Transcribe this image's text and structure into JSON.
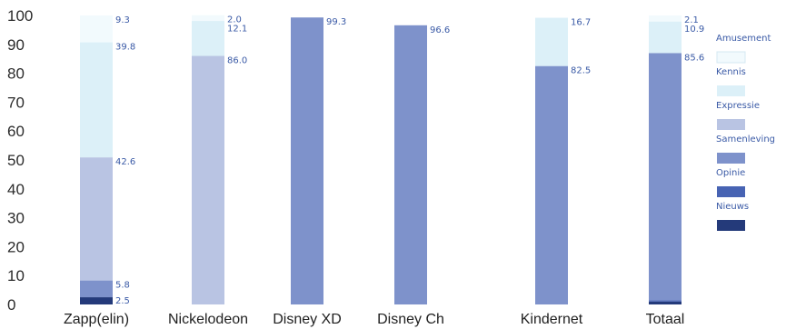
{
  "chart_data": {
    "type": "bar",
    "stacked": true,
    "title": "",
    "xlabel": "",
    "ylabel": "",
    "ylim": [
      0,
      100
    ],
    "yticks": [
      0,
      10,
      20,
      30,
      40,
      50,
      60,
      70,
      80,
      90,
      100
    ],
    "grid": false,
    "legend_position": "right",
    "categories": [
      "Zapp(elin)",
      "Nickelodeon",
      "Disney XD",
      "Disney Ch",
      "Kindernet",
      "Totaal"
    ],
    "series": [
      {
        "name": "Nieuws",
        "color": "#243a7a",
        "values": [
          2.5,
          0,
          0,
          0,
          0,
          1.0
        ]
      },
      {
        "name": "Opinie",
        "color": "#4763b3",
        "values": [
          0,
          0,
          0,
          0,
          0,
          0.4
        ]
      },
      {
        "name": "Samenleving",
        "color": "#7e92cb",
        "values": [
          5.8,
          0,
          99.3,
          96.6,
          82.5,
          85.6
        ]
      },
      {
        "name": "Expressie",
        "color": "#b9c4e3",
        "values": [
          42.6,
          86.0,
          0,
          0,
          0,
          0
        ]
      },
      {
        "name": "Kennis",
        "color": "#dcf0f8",
        "values": [
          39.8,
          12.1,
          0,
          0,
          16.7,
          10.9
        ]
      },
      {
        "name": "Amusement",
        "color": "#f2fafd",
        "values": [
          9.3,
          2.0,
          0,
          0,
          0,
          2.1
        ]
      }
    ],
    "data_labels": [
      {
        "category": 0,
        "series": "Nieuws",
        "text": "2.5"
      },
      {
        "category": 0,
        "series": "Samenleving",
        "text": "5.8"
      },
      {
        "category": 0,
        "series": "Expressie",
        "text": "42.6"
      },
      {
        "category": 0,
        "series": "Kennis",
        "text": "39.8"
      },
      {
        "category": 0,
        "series": "Amusement",
        "text": "9.3"
      },
      {
        "category": 1,
        "series": "Expressie",
        "text": "86.0"
      },
      {
        "category": 1,
        "series": "Kennis",
        "text": "12.1"
      },
      {
        "category": 1,
        "series": "Amusement",
        "text": "2.0"
      },
      {
        "category": 2,
        "series": "Samenleving",
        "text": "99.3"
      },
      {
        "category": 3,
        "series": "Samenleving",
        "text": "96.6"
      },
      {
        "category": 4,
        "series": "Samenleving",
        "text": "82.5"
      },
      {
        "category": 4,
        "series": "Kennis",
        "text": "16.7"
      },
      {
        "category": 5,
        "series": "Samenleving",
        "text": "85.6"
      },
      {
        "category": 5,
        "series": "Kennis",
        "text": "10.9"
      },
      {
        "category": 5,
        "series": "Amusement",
        "text": "2.1"
      }
    ],
    "legend_order": [
      "Amusement",
      "Kennis",
      "Expressie",
      "Samenleving",
      "Opinie",
      "Nieuws"
    ]
  }
}
